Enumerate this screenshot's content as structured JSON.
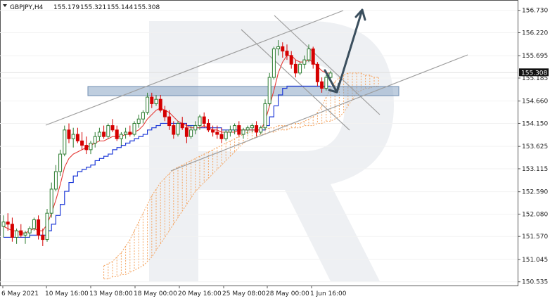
{
  "header": {
    "symbol": "GBPJPY,H4",
    "open": "155.179",
    "high": "155.321",
    "low": "155.144",
    "close": "155.308"
  },
  "chart_data": {
    "type": "candlestick",
    "ylim": [
      150.45,
      156.95
    ],
    "y_ticks": [
      "156.730",
      "156.220",
      "155.695",
      "155.185",
      "154.660",
      "154.150",
      "153.625",
      "153.115",
      "152.590",
      "152.080",
      "151.570",
      "151.045",
      "150.535"
    ],
    "current_price": "155.308",
    "x_ticks": [
      "6 May 2021",
      "10 May 16:00",
      "13 May 08:00",
      "18 May 00:00",
      "20 May 16:00",
      "25 May 08:00",
      "28 May 00:00",
      "1 Jun 16:00"
    ],
    "colors": {
      "bull": "#2e7d32",
      "bear": "#d50000",
      "tenkan": "#e53935",
      "kijun": "#1e3ad8",
      "cloud": "#f4a460",
      "channel": "#9e9e9e",
      "forecast": "#3b4f5e",
      "zone": "#8ba6c4"
    },
    "candles": [
      [
        151.8,
        152.05,
        151.55,
        151.9
      ],
      [
        151.9,
        152.1,
        151.7,
        151.85
      ],
      [
        151.85,
        152.0,
        151.45,
        151.55
      ],
      [
        151.55,
        151.75,
        151.4,
        151.7
      ],
      [
        151.7,
        151.85,
        151.55,
        151.6
      ],
      [
        151.6,
        151.7,
        151.4,
        151.65
      ],
      [
        151.65,
        151.8,
        151.55,
        151.75
      ],
      [
        151.75,
        152.0,
        151.7,
        151.95
      ],
      [
        151.95,
        152.05,
        151.5,
        151.6
      ],
      [
        151.6,
        151.75,
        151.35,
        151.5
      ],
      [
        151.5,
        152.2,
        151.45,
        152.1
      ],
      [
        152.1,
        152.8,
        152.0,
        152.65
      ],
      [
        152.65,
        153.2,
        152.6,
        153.05
      ],
      [
        153.05,
        153.55,
        152.95,
        153.45
      ],
      [
        153.45,
        154.1,
        153.4,
        154.0
      ],
      [
        154.0,
        154.15,
        153.7,
        153.8
      ],
      [
        153.8,
        154.05,
        153.6,
        153.9
      ],
      [
        153.9,
        154.05,
        153.7,
        153.75
      ],
      [
        153.75,
        153.95,
        153.55,
        153.65
      ],
      [
        153.65,
        153.85,
        153.45,
        153.55
      ],
      [
        153.55,
        153.75,
        153.45,
        153.7
      ],
      [
        153.7,
        153.95,
        153.6,
        153.85
      ],
      [
        153.85,
        154.05,
        153.75,
        153.95
      ],
      [
        153.95,
        154.1,
        153.8,
        153.85
      ],
      [
        153.85,
        154.15,
        153.8,
        154.1
      ],
      [
        154.1,
        154.25,
        153.95,
        154.0
      ],
      [
        154.0,
        154.1,
        153.75,
        153.8
      ],
      [
        153.8,
        153.95,
        153.65,
        153.9
      ],
      [
        153.9,
        154.05,
        153.8,
        153.95
      ],
      [
        153.95,
        154.1,
        153.85,
        153.9
      ],
      [
        153.9,
        154.2,
        153.85,
        154.15
      ],
      [
        154.15,
        154.35,
        154.05,
        154.25
      ],
      [
        154.25,
        154.45,
        154.15,
        154.4
      ],
      [
        154.4,
        154.85,
        154.35,
        154.75
      ],
      [
        154.75,
        154.85,
        154.5,
        154.6
      ],
      [
        154.6,
        154.8,
        154.55,
        154.7
      ],
      [
        154.7,
        154.8,
        154.4,
        154.45
      ],
      [
        154.45,
        154.55,
        154.2,
        154.3
      ],
      [
        154.3,
        154.45,
        154.0,
        154.1
      ],
      [
        154.1,
        154.2,
        153.8,
        153.9
      ],
      [
        153.9,
        154.2,
        153.85,
        154.15
      ],
      [
        154.15,
        154.3,
        154.0,
        154.05
      ],
      [
        154.05,
        154.15,
        153.7,
        153.85
      ],
      [
        153.85,
        154.1,
        153.8,
        154.0
      ],
      [
        154.0,
        154.2,
        153.9,
        154.1
      ],
      [
        154.1,
        154.35,
        154.0,
        154.3
      ],
      [
        154.3,
        154.4,
        154.05,
        154.15
      ],
      [
        154.15,
        154.25,
        153.95,
        154.0
      ],
      [
        154.0,
        154.1,
        153.85,
        153.95
      ],
      [
        153.95,
        154.1,
        153.8,
        153.9
      ],
      [
        153.9,
        154.05,
        153.7,
        153.8
      ],
      [
        153.8,
        154.0,
        153.75,
        153.95
      ],
      [
        153.95,
        154.1,
        153.85,
        154.0
      ],
      [
        154.0,
        154.15,
        153.9,
        154.1
      ],
      [
        154.1,
        154.2,
        153.85,
        153.9
      ],
      [
        153.9,
        154.05,
        153.8,
        154.0
      ],
      [
        154.0,
        154.1,
        153.9,
        154.05
      ],
      [
        154.05,
        154.15,
        153.95,
        154.1
      ],
      [
        154.1,
        154.2,
        153.85,
        153.95
      ],
      [
        153.95,
        154.1,
        153.9,
        154.05
      ],
      [
        154.05,
        154.7,
        154.0,
        154.6
      ],
      [
        154.6,
        155.3,
        154.55,
        155.2
      ],
      [
        155.2,
        155.9,
        155.15,
        155.85
      ],
      [
        155.85,
        156.05,
        155.7,
        155.9
      ],
      [
        155.9,
        156.0,
        155.65,
        155.8
      ],
      [
        155.8,
        155.95,
        155.6,
        155.7
      ],
      [
        155.7,
        155.8,
        155.4,
        155.5
      ],
      [
        155.5,
        155.6,
        155.2,
        155.3
      ],
      [
        155.3,
        155.55,
        155.25,
        155.5
      ],
      [
        155.5,
        155.7,
        155.4,
        155.6
      ],
      [
        155.6,
        155.95,
        155.55,
        155.85
      ],
      [
        155.85,
        155.9,
        155.4,
        155.5
      ],
      [
        155.5,
        155.55,
        155.0,
        155.1
      ],
      [
        155.1,
        155.2,
        154.85,
        154.95
      ],
      [
        154.95,
        155.25,
        154.9,
        155.2
      ],
      [
        155.2,
        155.35,
        155.1,
        155.3
      ]
    ],
    "tenkan": [
      151.8,
      151.75,
      151.7,
      151.7,
      151.65,
      151.65,
      151.7,
      151.75,
      151.7,
      151.7,
      151.85,
      152.1,
      152.4,
      152.75,
      153.15,
      153.35,
      153.45,
      153.5,
      153.55,
      153.6,
      153.65,
      153.7,
      153.75,
      153.75,
      153.8,
      153.85,
      153.85,
      153.85,
      153.9,
      153.9,
      153.95,
      154.0,
      154.1,
      154.25,
      154.35,
      154.45,
      154.5,
      154.45,
      154.4,
      154.3,
      154.2,
      154.15,
      154.1,
      154.05,
      154.05,
      154.05,
      154.1,
      154.05,
      154.0,
      154.0,
      153.95,
      153.95,
      153.95,
      153.95,
      154.0,
      154.0,
      154.0,
      154.0,
      154.0,
      154.0,
      154.2,
      154.55,
      154.9,
      155.3,
      155.55,
      155.7,
      155.7,
      155.6,
      155.55,
      155.55,
      155.6,
      155.55,
      155.45,
      155.35,
      155.3,
      155.3
    ],
    "kijun": [
      151.55,
      151.55,
      151.55,
      151.55,
      151.55,
      151.55,
      151.6,
      151.6,
      151.6,
      151.6,
      151.7,
      151.85,
      152.05,
      152.3,
      152.6,
      152.8,
      152.95,
      153.05,
      153.1,
      153.15,
      153.2,
      153.3,
      153.35,
      153.4,
      153.45,
      153.55,
      153.6,
      153.65,
      153.7,
      153.75,
      153.8,
      153.85,
      153.9,
      154.0,
      154.05,
      154.1,
      154.15,
      154.15,
      154.15,
      154.15,
      154.15,
      154.15,
      154.1,
      154.1,
      154.05,
      154.05,
      154.05,
      154.05,
      154.05,
      154.05,
      154.0,
      154.0,
      154.0,
      154.0,
      154.0,
      154.0,
      154.0,
      154.0,
      154.0,
      154.0,
      154.1,
      154.3,
      154.55,
      154.8,
      154.95,
      155.0,
      155.0,
      155.0,
      155.0,
      155.0,
      155.0,
      155.0,
      155.0,
      155.0,
      155.0,
      155.0
    ],
    "cloud_upper": [
      150.9,
      150.95,
      151.0,
      151.1,
      151.2,
      151.35,
      151.5,
      151.7,
      151.9,
      152.1,
      152.3,
      152.5,
      152.65,
      152.8,
      152.9,
      153.0,
      153.1,
      153.15,
      153.2,
      153.25,
      153.3,
      153.35,
      153.4,
      153.45,
      153.5,
      153.55,
      153.6,
      153.65,
      153.7,
      153.75,
      153.8,
      153.85,
      153.9,
      153.95,
      153.95,
      154.0,
      154.0,
      154.0,
      154.05,
      154.05,
      154.1,
      154.1,
      154.1,
      154.15,
      154.15,
      154.15,
      154.2,
      154.25,
      154.3,
      154.4,
      154.55,
      154.75,
      154.95,
      155.1,
      155.2,
      155.25,
      155.3,
      155.3,
      155.3,
      155.3,
      155.25,
      155.25,
      155.2,
      155.2
    ],
    "cloud_lower": [
      150.6,
      150.6,
      150.65,
      150.65,
      150.7,
      150.7,
      150.75,
      150.8,
      150.85,
      150.9,
      151.0,
      151.1,
      151.25,
      151.4,
      151.55,
      151.7,
      151.85,
      152.0,
      152.15,
      152.3,
      152.45,
      152.6,
      152.7,
      152.8,
      152.9,
      153.0,
      153.1,
      153.2,
      153.3,
      153.4,
      153.5,
      153.6,
      153.7,
      153.75,
      153.8,
      153.85,
      153.9,
      153.9,
      153.95,
      153.95,
      154.0,
      154.0,
      154.0,
      154.05,
      154.05,
      154.05,
      154.1,
      154.1,
      154.1,
      154.15,
      154.15,
      154.2,
      154.2,
      154.25,
      154.3,
      154.4,
      154.55,
      154.7,
      154.85,
      154.9,
      154.95,
      154.95,
      155.0,
      155.0
    ]
  }
}
